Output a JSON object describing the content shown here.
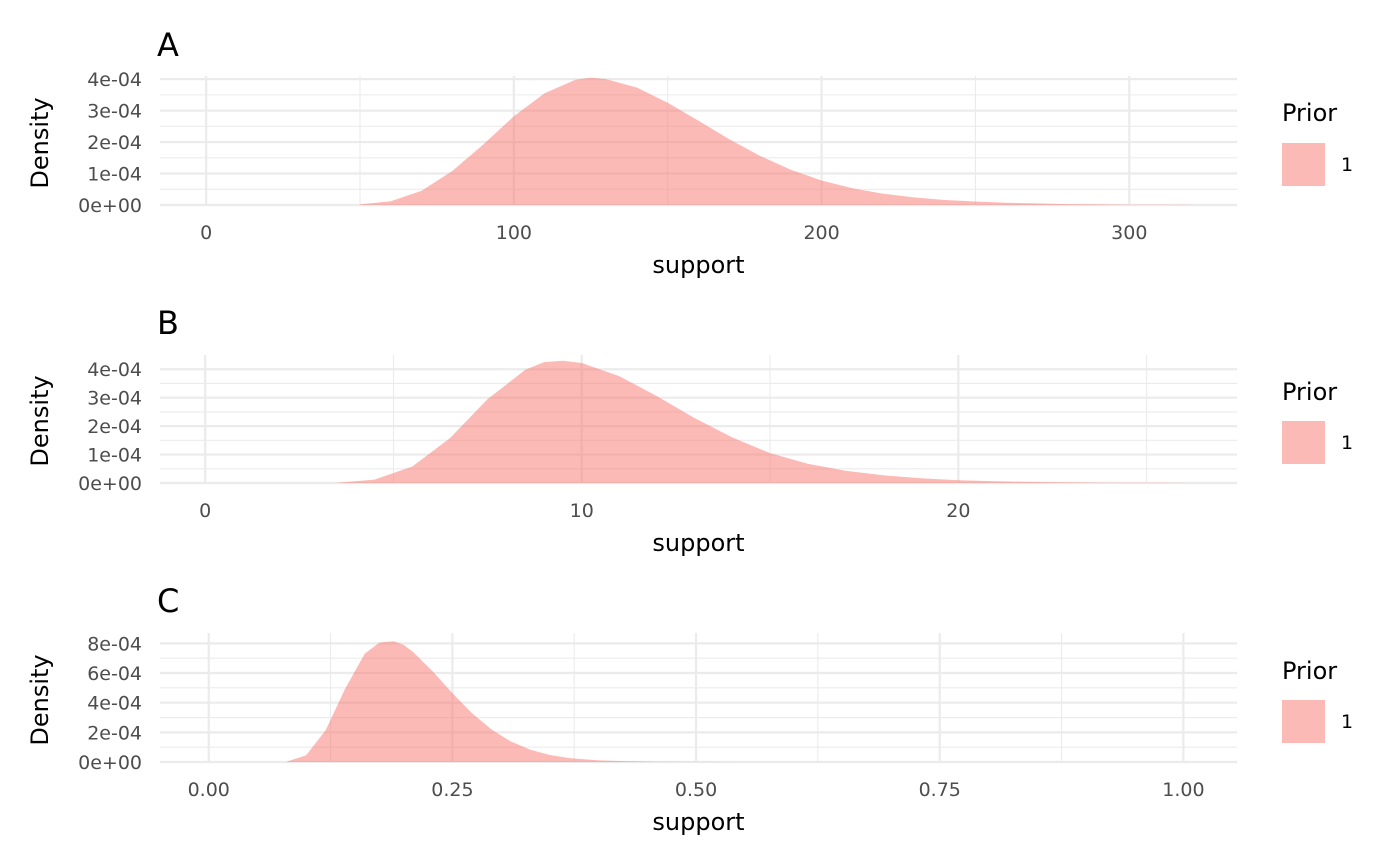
{
  "chart_data": [
    {
      "type": "area",
      "title": "A",
      "xlabel": "support",
      "ylabel": "Density",
      "xlim": [
        -15,
        335
      ],
      "ylim": [
        0,
        0.00041
      ],
      "x_ticks": [
        {
          "value": 0,
          "label": "0"
        },
        {
          "value": 100,
          "label": "100"
        },
        {
          "value": 200,
          "label": "200"
        },
        {
          "value": 300,
          "label": "300"
        }
      ],
      "x_minor_ticks": [
        50,
        150,
        250
      ],
      "y_ticks": [
        {
          "value": 0,
          "label": "0e+00"
        },
        {
          "value": 0.0001,
          "label": "1e-04"
        },
        {
          "value": 0.0002,
          "label": "2e-04"
        },
        {
          "value": 0.0003,
          "label": "3e-04"
        },
        {
          "value": 0.0004,
          "label": "4e-04"
        }
      ],
      "y_minor_ticks": [
        5e-05,
        0.00015,
        0.00025,
        0.00035
      ],
      "grid": true,
      "legend": {
        "title": "Prior",
        "placement": "right",
        "entries": [
          {
            "label": "1",
            "color": "#F8766D"
          }
        ]
      },
      "series": [
        {
          "name": "1",
          "color": "#F8766D",
          "alpha": 0.5,
          "x": [
            50,
            60,
            70,
            80,
            90,
            100,
            110,
            120,
            125,
            130,
            140,
            150,
            160,
            170,
            180,
            190,
            200,
            210,
            220,
            230,
            240,
            250,
            260,
            270,
            280,
            290,
            300,
            310,
            320
          ],
          "y": [
            2e-06,
            1.2e-05,
            4.5e-05,
            0.000108,
            0.000192,
            0.000282,
            0.000355,
            0.000398,
            0.000405,
            0.0004,
            0.000373,
            0.000325,
            0.000268,
            0.000209,
            0.000156,
            0.000112,
            7.8e-05,
            5.3e-05,
            3.6e-05,
            2.4e-05,
            1.6e-05,
            1.1e-05,
            7e-06,
            5e-06,
            3e-06,
            2e-06,
            1e-06,
            6e-07,
            3e-07
          ]
        }
      ]
    },
    {
      "type": "area",
      "title": "B",
      "xlabel": "support",
      "ylabel": "Density",
      "xlim": [
        -1.2,
        27.4
      ],
      "ylim": [
        0,
        0.00045
      ],
      "x_ticks": [
        {
          "value": 0,
          "label": "0"
        },
        {
          "value": 10,
          "label": "10"
        },
        {
          "value": 20,
          "label": "20"
        }
      ],
      "x_minor_ticks": [
        5,
        15,
        25
      ],
      "y_ticks": [
        {
          "value": 0,
          "label": "0e+00"
        },
        {
          "value": 0.0001,
          "label": "1e-04"
        },
        {
          "value": 0.0002,
          "label": "2e-04"
        },
        {
          "value": 0.0003,
          "label": "3e-04"
        },
        {
          "value": 0.0004,
          "label": "4e-04"
        }
      ],
      "y_minor_ticks": [
        5e-05,
        0.00015,
        0.00025,
        0.00035
      ],
      "grid": true,
      "legend": {
        "title": "Prior",
        "placement": "right",
        "entries": [
          {
            "label": "1",
            "color": "#F8766D"
          }
        ]
      },
      "series": [
        {
          "name": "1",
          "color": "#F8766D",
          "alpha": 0.5,
          "x": [
            3.5,
            4.5,
            5.5,
            6.5,
            7.5,
            8.5,
            9.0,
            9.5,
            10.0,
            11.0,
            12.0,
            13.0,
            14.0,
            15.0,
            16.0,
            17.0,
            18.0,
            19.0,
            20.0,
            21.0,
            22.0,
            23.0,
            24.0,
            25.0,
            26.0
          ],
          "y": [
            1e-06,
            1.2e-05,
            5.8e-05,
            0.000158,
            0.000295,
            0.000398,
            0.000425,
            0.00043,
            0.000422,
            0.000375,
            0.000305,
            0.000228,
            0.00016,
            0.000105,
            6.8e-05,
            4.3e-05,
            2.7e-05,
            1.7e-05,
            1e-05,
            6e-06,
            3.5e-06,
            2e-06,
            1.2e-06,
            7e-07,
            4e-07
          ]
        }
      ]
    },
    {
      "type": "area",
      "title": "C",
      "xlabel": "support",
      "ylabel": "Density",
      "xlim": [
        -0.05,
        1.055
      ],
      "ylim": [
        0,
        0.00087
      ],
      "x_ticks": [
        {
          "value": 0,
          "label": "0.00"
        },
        {
          "value": 0.25,
          "label": "0.25"
        },
        {
          "value": 0.5,
          "label": "0.50"
        },
        {
          "value": 0.75,
          "label": "0.75"
        },
        {
          "value": 1.0,
          "label": "1.00"
        }
      ],
      "x_minor_ticks": [
        0.125,
        0.375,
        0.625,
        0.875
      ],
      "y_ticks": [
        {
          "value": 0,
          "label": "0e+00"
        },
        {
          "value": 0.0002,
          "label": "2e-04"
        },
        {
          "value": 0.0004,
          "label": "4e-04"
        },
        {
          "value": 0.0006,
          "label": "6e-04"
        },
        {
          "value": 0.0008,
          "label": "8e-04"
        }
      ],
      "y_minor_ticks": [
        0.0001,
        0.0003,
        0.0005,
        0.0007
      ],
      "grid": true,
      "legend": {
        "title": "Prior",
        "placement": "right",
        "entries": [
          {
            "label": "1",
            "color": "#F8766D"
          }
        ]
      },
      "series": [
        {
          "name": "1",
          "color": "#F8766D",
          "alpha": 0.5,
          "x": [
            0.08,
            0.1,
            0.12,
            0.14,
            0.16,
            0.175,
            0.19,
            0.2,
            0.21,
            0.23,
            0.25,
            0.27,
            0.29,
            0.31,
            0.33,
            0.35,
            0.37,
            0.4,
            0.43,
            0.46,
            0.5,
            0.55
          ],
          "y": [
            3e-06,
            4.5e-05,
            0.000215,
            0.000495,
            0.00073,
            0.000805,
            0.000815,
            0.00079,
            0.00074,
            0.00061,
            0.000465,
            0.00033,
            0.00022,
            0.000138,
            8.2e-05,
            4.7e-05,
            2.6e-05,
            1.1e-05,
            4.5e-06,
            1.8e-06,
            6e-07,
            1e-07
          ]
        }
      ]
    }
  ]
}
